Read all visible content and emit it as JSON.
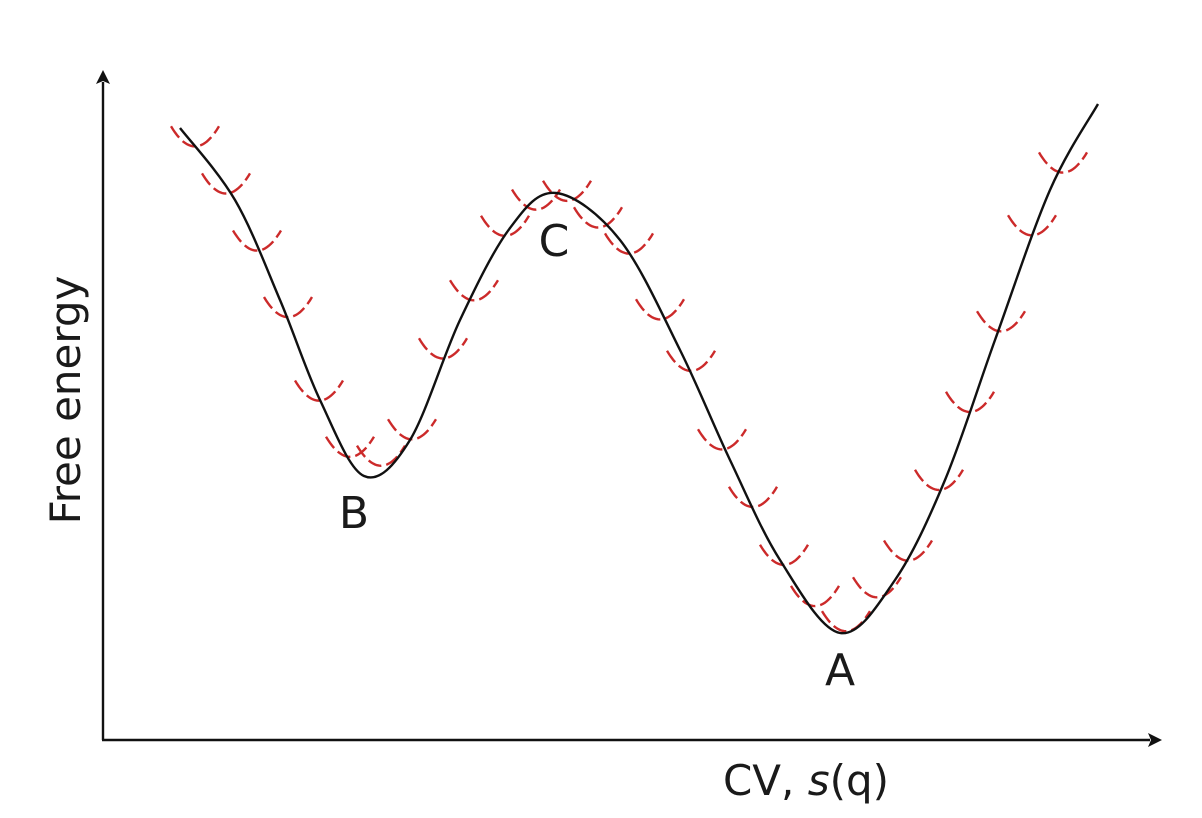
{
  "figure": {
    "y_axis_label": "Free energy",
    "x_axis_label_prefix": "CV, ",
    "x_axis_label_symbol": "s",
    "x_axis_label_arg": "(q)",
    "points": [
      {
        "key": "B",
        "label": "B"
      },
      {
        "key": "C",
        "label": "C"
      },
      {
        "key": "A",
        "label": "A"
      }
    ],
    "colors": {
      "axes": "#111111",
      "free_energy_curve": "#111111",
      "umbrella_windows": "#cc2a2a"
    }
  },
  "chart_data": {
    "type": "line",
    "title": "",
    "xlabel": "CV, s(q)",
    "ylabel": "Free energy",
    "ticks": "none",
    "series": [
      {
        "description_free": true,
        "style": "solid-black"
      },
      {
        "description_free": true,
        "style": "dashed-red-harmonic-windows",
        "count": 30
      }
    ],
    "labeled_points": [
      "B",
      "C",
      "A"
    ]
  }
}
